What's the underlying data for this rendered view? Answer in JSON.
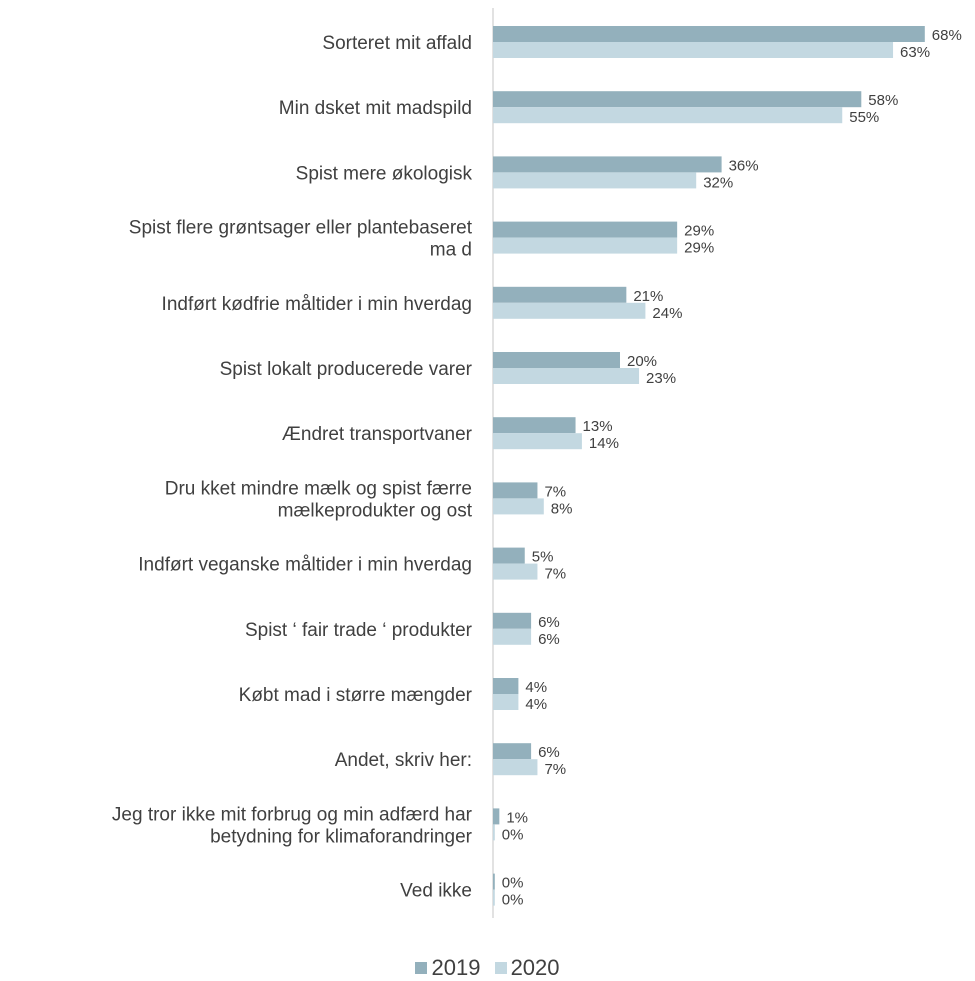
{
  "chart_data": {
    "type": "bar",
    "orientation": "horizontal",
    "categories": [
      [
        "Sorteret mit affald"
      ],
      [
        "Min dsket mit madspild"
      ],
      [
        "Spist mere økologisk"
      ],
      [
        "Spist flere grøntsager eller plantebaseret",
        "ma d"
      ],
      [
        "Indført kødfrie måltider i min hverdag"
      ],
      [
        "Spist lokalt producerede varer"
      ],
      [
        "Ændret transportvaner"
      ],
      [
        "Dru kket mindre mælk og spist færre",
        "mælkeprodukter og ost"
      ],
      [
        "Indført veganske måltider i min hverdag"
      ],
      [
        "Spist ‘ fair trade ‘ produkter"
      ],
      [
        "Købt mad i større mængder"
      ],
      [
        "Andet, skriv her:"
      ],
      [
        "Jeg tror ikke mit forbrug og min adfærd har",
        "betydning for klimaforandringer"
      ],
      [
        "Ved ikke"
      ]
    ],
    "series": [
      {
        "name": "2019",
        "color": "#93b0bc",
        "values": [
          68,
          58,
          36,
          29,
          21,
          20,
          13,
          7,
          5,
          6,
          4,
          6,
          1,
          0
        ],
        "labels": [
          "68%",
          "58%",
          "36%",
          "29%",
          "21%",
          "20%",
          "13%",
          "7%",
          "5%",
          "6%",
          "4%",
          "6%",
          "1%",
          "0%"
        ]
      },
      {
        "name": "2020",
        "color": "#c3d8e1",
        "values": [
          63,
          55,
          32,
          29,
          24,
          23,
          14,
          8,
          7,
          6,
          4,
          7,
          0,
          0
        ],
        "labels": [
          "63%",
          "55%",
          "32%",
          "29%",
          "24%",
          "23%",
          "14%",
          "8%",
          "7%",
          "6%",
          "4%",
          "7%",
          "0%",
          "0%"
        ]
      }
    ],
    "xlim": [
      0,
      70
    ],
    "grid": false,
    "legend_position": "bottom"
  }
}
